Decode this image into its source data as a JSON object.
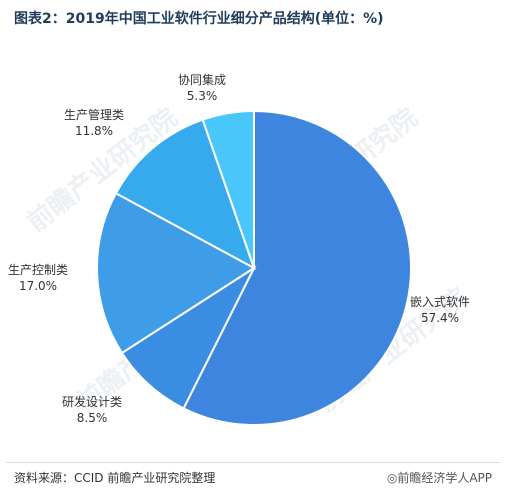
{
  "title": "图表2：2019年中国工业软件行业细分产品结构(单位：%)",
  "source": "资料来源：CCID 前瞻产业研究院整理",
  "brand": "◎前瞻经济学人APP",
  "watermark": "前瞻产业研究院",
  "chart_data": {
    "type": "pie",
    "title": "图表2：2019年中国工业软件行业细分产品结构(单位：%)",
    "unit": "%",
    "slices": [
      {
        "label": "嵌入式软件",
        "value": 57.4,
        "display": "57.4%",
        "color": "#3d85df"
      },
      {
        "label": "研发设计类",
        "value": 8.5,
        "display": "8.5%",
        "color": "#3a8de0"
      },
      {
        "label": "生产控制类",
        "value": 17.0,
        "display": "17.0%",
        "color": "#3f9ce6"
      },
      {
        "label": "生产管理类",
        "value": 11.8,
        "display": "11.8%",
        "color": "#37aaee"
      },
      {
        "label": "协同集成",
        "value": 5.3,
        "display": "5.3%",
        "color": "#49c7fb"
      }
    ]
  }
}
